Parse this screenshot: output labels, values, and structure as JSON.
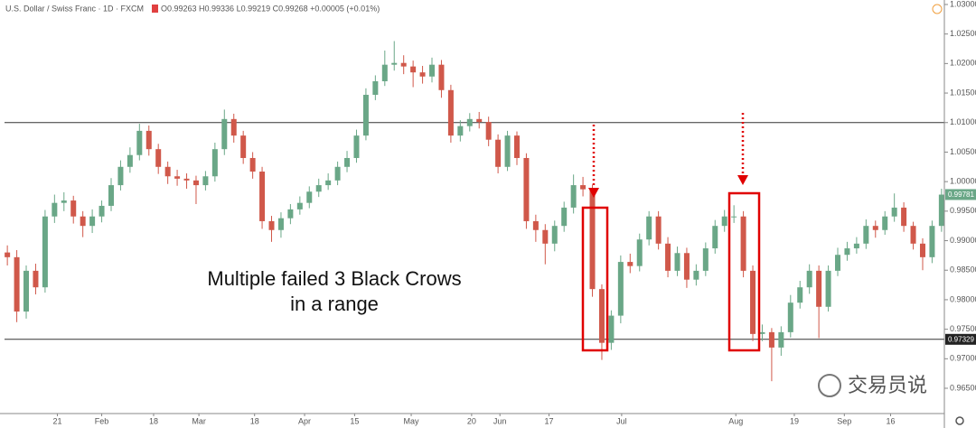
{
  "chart_data": {
    "type": "candlestick",
    "title": "U.S. Dollar / Swiss Franc · 1D · FXCM",
    "ohlc_legend": "O0.99263 H0.99336 L0.99219 C0.99268 +0.00005 (+0.01%)",
    "annotation": [
      "Multiple failed 3 Black Crows",
      "in a range"
    ],
    "watermark": "交易员说",
    "up_color": "#6aa787",
    "down_color": "#d0584a",
    "hlines": [
      1.01,
      0.97329
    ],
    "price_tags": [
      {
        "value": 0.99781,
        "color": "#6aa787"
      },
      {
        "value": 0.97329,
        "color": "#222222"
      }
    ],
    "xlim": [
      -0.3,
      99.3
    ],
    "xticks": [
      {
        "value": 5.3,
        "label": "21"
      },
      {
        "value": 10.0,
        "label": "Feb"
      },
      {
        "value": 15.5,
        "label": "18"
      },
      {
        "value": 20.3,
        "label": "Mar"
      },
      {
        "value": 26.2,
        "label": "18"
      },
      {
        "value": 31.5,
        "label": "Apr"
      },
      {
        "value": 36.8,
        "label": "15"
      },
      {
        "value": 42.8,
        "label": "May"
      },
      {
        "value": 49.2,
        "label": "20"
      },
      {
        "value": 52.2,
        "label": "Jun"
      },
      {
        "value": 57.4,
        "label": "17"
      },
      {
        "value": 65.1,
        "label": "Jul"
      },
      {
        "value": 77.2,
        "label": "Aug"
      },
      {
        "value": 83.4,
        "label": "19"
      },
      {
        "value": 88.7,
        "label": "Sep"
      },
      {
        "value": 93.6,
        "label": "16"
      }
    ],
    "ylim": [
      0.96072,
      1.03076
    ],
    "yticks": [
      {
        "value": 0.965,
        "label": "0.96500"
      },
      {
        "value": 0.97,
        "label": "0.97000"
      },
      {
        "value": 0.975,
        "label": "0.97500"
      },
      {
        "value": 0.98,
        "label": "0.98000"
      },
      {
        "value": 0.985,
        "label": "0.98500"
      },
      {
        "value": 0.99,
        "label": "0.99000"
      },
      {
        "value": 0.995,
        "label": "0.99500"
      },
      {
        "value": 1.0,
        "label": "1.00000"
      },
      {
        "value": 1.005,
        "label": "1.00500"
      },
      {
        "value": 1.01,
        "label": "1.01000"
      },
      {
        "value": 1.015,
        "label": "1.01500"
      },
      {
        "value": 1.02,
        "label": "1.02000"
      },
      {
        "value": 1.025,
        "label": "1.02500"
      },
      {
        "value": 1.03,
        "label": "1.03000"
      }
    ],
    "open": [
      0.988,
      0.9872,
      0.978,
      0.9849,
      0.9821,
      0.9941,
      0.9964,
      0.9968,
      0.9941,
      0.9925,
      0.9941,
      0.9959,
      0.9994,
      1.0025,
      1.0045,
      1.0086,
      1.0055,
      1.0025,
      1.0009,
      1.0005,
      1.0002,
      0.9994,
      1.0009,
      1.0055,
      1.0106,
      1.0078,
      1.004,
      1.0017,
      0.9933,
      0.9918,
      0.9938,
      0.9953,
      0.9964,
      0.9983,
      0.9994,
      1.0002,
      1.0025,
      1.004,
      1.0078,
      1.0147,
      1.017,
      1.0198,
      1.0201,
      1.0195,
      1.0185,
      1.0178,
      1.0198,
      1.0155,
      1.0078,
      1.0094,
      1.0106,
      1.0101,
      1.0071,
      1.0025,
      1.0078,
      1.004,
      0.9933,
      0.9918,
      0.9895,
      0.9925,
      0.9956,
      0.9994,
      0.9987,
      0.9818,
      0.9727,
      0.9773,
      0.9864,
      0.9857,
      0.9902,
      0.9941,
      0.9895,
      0.9849,
      0.9879,
      0.9834,
      0.9849,
      0.9887,
      0.9925,
      0.9941,
      0.9941,
      0.9849,
      0.9742,
      0.9745,
      0.9719,
      0.9745,
      0.9795,
      0.9821,
      0.9849,
      0.9788,
      0.9849,
      0.9876,
      0.9887,
      0.9895,
      0.9925,
      0.9918,
      0.9941,
      0.9956,
      0.9925,
      0.9895,
      0.9872,
      0.9925
    ],
    "high": [
      0.9892,
      0.9884,
      0.9858,
      0.9861,
      0.9952,
      0.9978,
      0.9982,
      0.9976,
      0.995,
      0.9953,
      0.9968,
      1.0006,
      1.0036,
      1.0058,
      1.0098,
      1.0095,
      1.0064,
      1.0034,
      1.002,
      1.0014,
      1.001,
      1.0018,
      1.0066,
      1.0122,
      1.0115,
      1.0086,
      1.005,
      1.0025,
      0.9942,
      0.9948,
      0.9962,
      0.9975,
      0.9992,
      1.0005,
      1.0014,
      1.0034,
      1.0052,
      1.0088,
      1.0158,
      1.018,
      1.0222,
      1.0238,
      1.0214,
      1.0205,
      1.0196,
      1.021,
      1.0206,
      1.0164,
      1.0104,
      1.0116,
      1.0118,
      1.011,
      1.008,
      1.0086,
      1.0085,
      1.0048,
      0.9944,
      0.9928,
      0.9934,
      0.9966,
      1.0012,
      1.0008,
      0.9995,
      0.9826,
      0.9782,
      0.9875,
      0.9878,
      0.9912,
      0.995,
      0.995,
      0.9906,
      0.989,
      0.9888,
      0.986,
      0.9897,
      0.9935,
      0.9952,
      0.996,
      0.995,
      0.9858,
      0.9758,
      0.9752,
      0.9755,
      0.9808,
      0.9832,
      0.986,
      0.9858,
      0.9858,
      0.9888,
      0.9898,
      0.9906,
      0.9936,
      0.9934,
      0.995,
      0.998,
      0.9965,
      0.9932,
      0.9904,
      0.9934,
      0.9988
    ],
    "low": [
      0.9858,
      0.9762,
      0.9768,
      0.9809,
      0.9812,
      0.993,
      0.995,
      0.9929,
      0.9906,
      0.9913,
      0.9931,
      0.995,
      0.9985,
      1.0015,
      1.0036,
      1.0044,
      1.0013,
      0.9996,
      0.9993,
      0.9988,
      0.9962,
      0.9985,
      1.0,
      1.0045,
      1.0066,
      1.003,
      1.0005,
      0.992,
      0.9898,
      0.9905,
      0.9928,
      0.9944,
      0.9955,
      0.9974,
      0.9986,
      0.9994,
      1.0016,
      1.0032,
      1.007,
      1.0138,
      1.0162,
      1.0188,
      1.0182,
      1.016,
      1.0166,
      1.0168,
      1.0142,
      1.0066,
      1.0068,
      1.0085,
      1.009,
      1.006,
      1.0014,
      1.0018,
      1.0028,
      0.992,
      0.9898,
      0.986,
      0.9882,
      0.9915,
      0.9946,
      0.9975,
      0.9805,
      0.9698,
      0.9715,
      0.976,
      0.9845,
      0.9848,
      0.9892,
      0.9885,
      0.9838,
      0.984,
      0.982,
      0.9824,
      0.984,
      0.9878,
      0.9915,
      0.993,
      0.9838,
      0.973,
      0.973,
      0.9662,
      0.9705,
      0.9736,
      0.9785,
      0.981,
      0.9735,
      0.978,
      0.984,
      0.9866,
      0.9878,
      0.9886,
      0.9905,
      0.991,
      0.9932,
      0.9915,
      0.9885,
      0.985,
      0.9862,
      0.9915
    ],
    "close": [
      0.9872,
      0.978,
      0.9849,
      0.9821,
      0.9941,
      0.9964,
      0.9968,
      0.9941,
      0.9925,
      0.9941,
      0.9959,
      0.9994,
      1.0025,
      1.0045,
      1.0086,
      1.0055,
      1.0025,
      1.0009,
      1.0005,
      1.0002,
      0.9994,
      1.0009,
      1.0055,
      1.0106,
      1.0078,
      1.004,
      1.0017,
      0.9933,
      0.9918,
      0.9938,
      0.9953,
      0.9964,
      0.9983,
      0.9994,
      1.0002,
      1.0025,
      1.004,
      1.0078,
      1.0147,
      1.017,
      1.0198,
      1.0201,
      1.0195,
      1.0185,
      1.0178,
      1.0198,
      1.0155,
      1.0078,
      1.0094,
      1.0106,
      1.0101,
      1.0071,
      1.0025,
      1.0078,
      1.004,
      0.9933,
      0.9918,
      0.9895,
      0.9925,
      0.9956,
      0.9994,
      0.9987,
      0.9818,
      0.9727,
      0.9773,
      0.9864,
      0.9857,
      0.9902,
      0.9941,
      0.9895,
      0.9849,
      0.9879,
      0.9834,
      0.9849,
      0.9887,
      0.9925,
      0.9941,
      0.9941,
      0.9849,
      0.9742,
      0.9745,
      0.9719,
      0.9745,
      0.9795,
      0.9821,
      0.9849,
      0.9788,
      0.9849,
      0.9876,
      0.9887,
      0.9895,
      0.9925,
      0.9918,
      0.9941,
      0.9956,
      0.9925,
      0.9895,
      0.9872,
      0.9925,
      0.9978
    ]
  }
}
